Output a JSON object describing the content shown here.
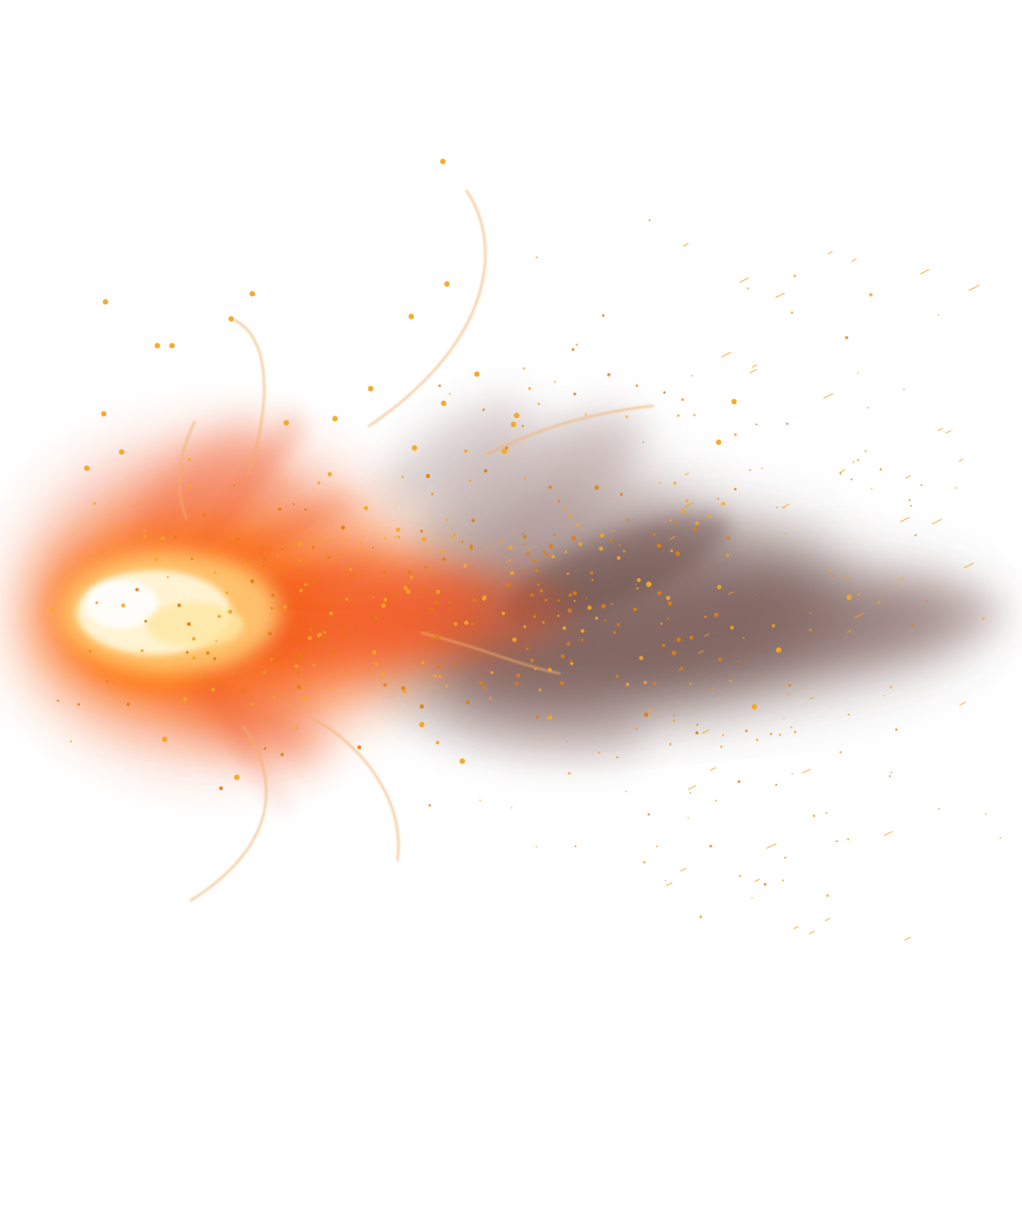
{
  "scene": {
    "subject": "fireball-with-smoke-trail",
    "colors": {
      "background": "#ffffff",
      "core": "#fff6d8",
      "core_glow": "#ffd27a",
      "flame": "#ff7a1f",
      "flame_red": "#f0501e",
      "ember": "#f5a623",
      "ember_dark": "#e0800f",
      "smoke_dark": "#5a3a36",
      "smoke_mid": "#8a6a66",
      "streak": "#f2b06a"
    }
  }
}
